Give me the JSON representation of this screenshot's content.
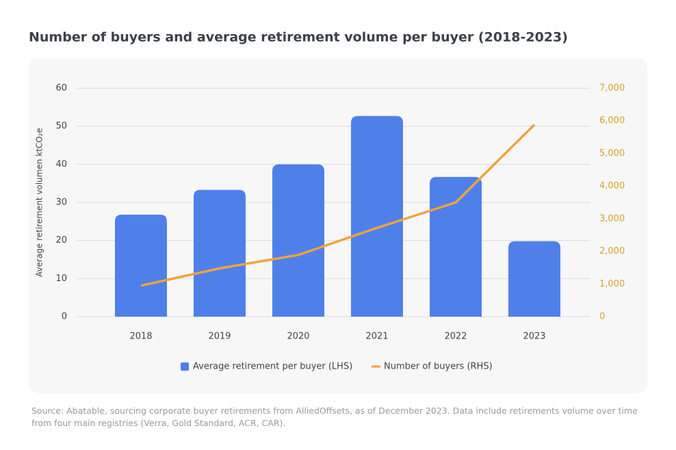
{
  "chart_data": {
    "type": "bar",
    "title": "Number of buyers and average retirement volume per buyer (2018-2023)",
    "ylabel": "Average retirement volumen ktCO₂e",
    "categories": [
      "2018",
      "2019",
      "2020",
      "2021",
      "2022",
      "2023"
    ],
    "series": [
      {
        "name": "Average retirement per buyer (LHS)",
        "type": "bar",
        "color": "#4f80ea",
        "values": [
          26.8,
          33.3,
          40,
          52.7,
          36.7,
          19.8
        ]
      },
      {
        "name": "Number of buyers (RHS)",
        "type": "line",
        "axis": "y2",
        "color": "#f0a23c",
        "values": [
          950,
          1480,
          1890,
          2720,
          3500,
          5880
        ]
      }
    ],
    "ylim": [
      0,
      60
    ],
    "yticks": [
      0,
      10,
      20,
      30,
      40,
      50,
      60
    ],
    "y2lim": [
      0,
      7000
    ],
    "y2ticks": [
      0,
      {
        "value": 1000,
        "label": "1,000"
      },
      {
        "value": 2000,
        "label": "2,000"
      },
      {
        "value": 3000,
        "label": "3,000"
      },
      {
        "value": 4000,
        "label": "4,000"
      },
      {
        "value": 5000,
        "label": "5,000"
      },
      {
        "value": 6000,
        "label": "6,000"
      },
      {
        "value": 7000,
        "label": "7,000"
      }
    ],
    "y2tick_color": "#d9a22a",
    "grid": true,
    "legend": "bottom",
    "source": "Source: Abatable, sourcing corporate buyer retirements from AlliedOffsets, as of December 2023. Data  include retirements volume over time from four main registries (Verra, Gold Standard, ACR, CAR)."
  }
}
